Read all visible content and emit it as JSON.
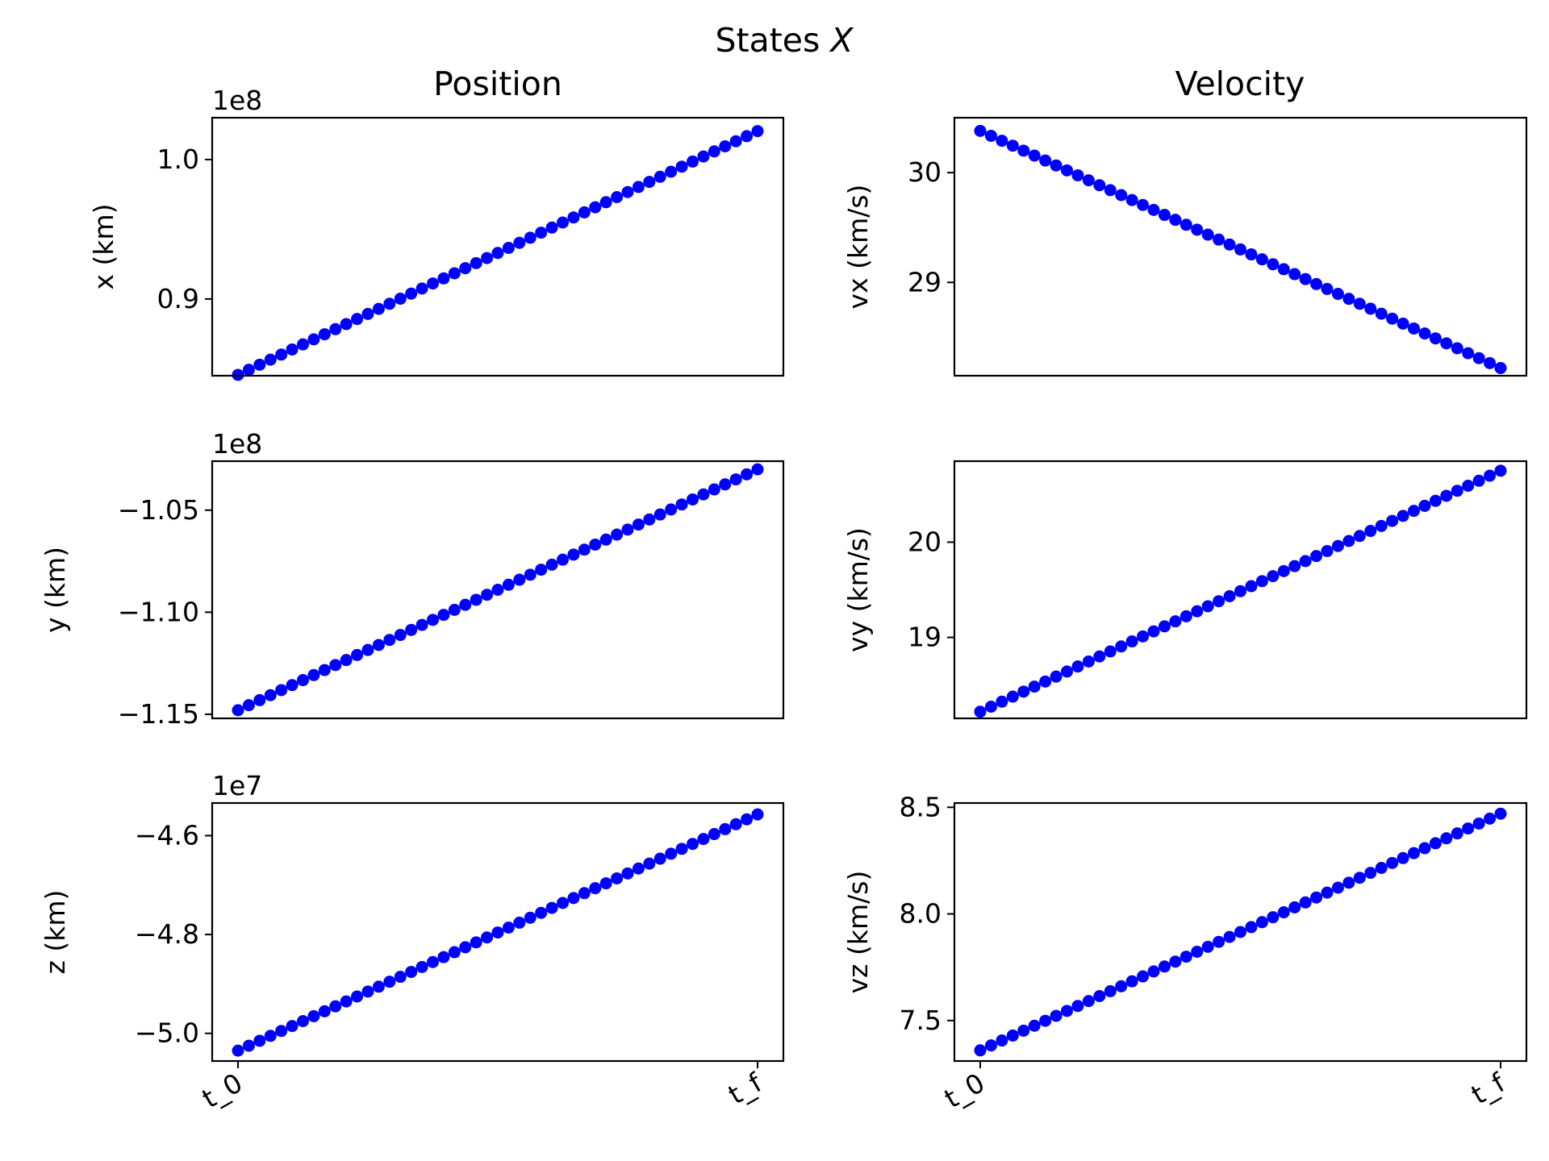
{
  "title_prefix": "States ",
  "title_symbol": "X",
  "columns": [
    "Position",
    "Velocity"
  ],
  "chart_data": [
    {
      "type": "scatter",
      "name": "x",
      "ylabel": "x (km)",
      "exponent": "1e8",
      "ylim": [
        0.845,
        1.03
      ],
      "y_start": 0.8456,
      "y_end": 1.0204,
      "yticks": [
        0.9,
        1.0
      ],
      "ytick_labels": [
        "0.9",
        "1.0"
      ],
      "x_tick_labels": [
        "t_0",
        "t_f"
      ],
      "n_points": 49,
      "color": "#0000ff"
    },
    {
      "type": "scatter",
      "name": "vx",
      "ylabel": "vx (km/s)",
      "exponent": "",
      "ylim": [
        28.15,
        30.5
      ],
      "y_start": 30.38,
      "y_end": 28.22,
      "yticks": [
        29,
        30
      ],
      "ytick_labels": [
        "29",
        "30"
      ],
      "x_tick_labels": [
        "t_0",
        "t_f"
      ],
      "n_points": 49,
      "color": "#0000ff"
    },
    {
      "type": "scatter",
      "name": "y",
      "ylabel": "y (km)",
      "exponent": "1e8",
      "ylim": [
        -1.152,
        -1.026
      ],
      "y_start": -1.148,
      "y_end": -1.03,
      "yticks": [
        -1.15,
        -1.1,
        -1.05
      ],
      "ytick_labels": [
        "−1.15",
        "−1.10",
        "−1.05"
      ],
      "x_tick_labels": [
        "t_0",
        "t_f"
      ],
      "n_points": 49,
      "color": "#0000ff"
    },
    {
      "type": "scatter",
      "name": "vy",
      "ylabel": "vy (km/s)",
      "exponent": "",
      "ylim": [
        18.15,
        20.85
      ],
      "y_start": 18.22,
      "y_end": 20.75,
      "yticks": [
        19,
        20
      ],
      "ytick_labels": [
        "19",
        "20"
      ],
      "x_tick_labels": [
        "t_0",
        "t_f"
      ],
      "n_points": 49,
      "color": "#0000ff"
    },
    {
      "type": "scatter",
      "name": "z",
      "ylabel": "z (km)",
      "exponent": "1e7",
      "ylim": [
        -5.056,
        -4.534
      ],
      "y_start": -5.035,
      "y_end": -4.557,
      "yticks": [
        -5.0,
        -4.8,
        -4.6
      ],
      "ytick_labels": [
        "−5.0",
        "−4.8",
        "−4.6"
      ],
      "x_tick_labels": [
        "t_0",
        "t_f"
      ],
      "n_points": 49,
      "color": "#0000ff"
    },
    {
      "type": "scatter",
      "name": "vz",
      "ylabel": "vz (km/s)",
      "exponent": "",
      "ylim": [
        7.31,
        8.52
      ],
      "y_start": 7.36,
      "y_end": 8.47,
      "yticks": [
        7.5,
        8.0,
        8.5
      ],
      "ytick_labels": [
        "7.5",
        "8.0",
        "8.5"
      ],
      "x_tick_labels": [
        "t_0",
        "t_f"
      ],
      "n_points": 49,
      "color": "#0000ff"
    }
  ]
}
